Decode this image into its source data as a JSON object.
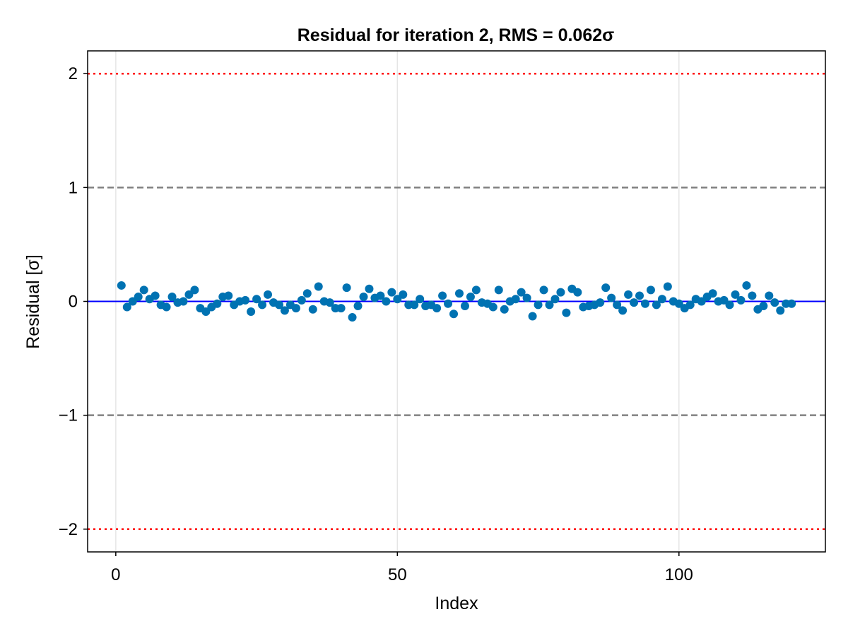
{
  "chart_data": {
    "type": "scatter",
    "title": "Residual for iteration 2, RMS = 0.062σ",
    "xlabel": "Index",
    "ylabel": "Residual [σ]",
    "xlim": [
      -5,
      126
    ],
    "ylim": [
      -2.2,
      2.2
    ],
    "xticks": [
      0,
      50,
      100
    ],
    "xtick_labels": [
      "0",
      "50",
      "100"
    ],
    "yticks": [
      -2,
      -1,
      0,
      1,
      2
    ],
    "ytick_labels": [
      "−2",
      "−1",
      "0",
      "1",
      "2"
    ],
    "grid": "vertical",
    "legend": "none",
    "colors": {
      "points": "#0072b2",
      "zero_line": "#0000ff",
      "sigma1_lines": "#808080",
      "sigma2_lines": "#ff0000",
      "grid": "#e5e5e5"
    },
    "reference_lines": [
      {
        "y": 2,
        "style": "dotted",
        "color": "#ff0000"
      },
      {
        "y": 1,
        "style": "dashed",
        "color": "#808080"
      },
      {
        "y": 0,
        "style": "solid",
        "color": "#0000ff"
      },
      {
        "y": -1,
        "style": "dashed",
        "color": "#808080"
      },
      {
        "y": -2,
        "style": "dotted",
        "color": "#ff0000"
      }
    ],
    "series": [
      {
        "x": [
          1,
          2,
          3,
          4,
          5,
          6,
          7,
          8,
          9,
          10,
          11,
          12,
          13,
          14,
          15,
          16,
          17,
          18,
          19,
          20,
          21,
          22,
          23,
          24,
          25,
          26,
          27,
          28,
          29,
          30,
          31,
          32,
          33,
          34,
          35,
          36,
          37,
          38,
          39,
          40,
          41,
          42,
          43,
          44,
          45,
          46,
          47,
          48,
          49,
          50,
          51,
          52,
          53,
          54,
          55,
          56,
          57,
          58,
          59,
          60,
          61,
          62,
          63,
          64,
          65,
          66,
          67,
          68,
          69,
          70,
          71,
          72,
          73,
          74,
          75,
          76,
          77,
          78,
          79,
          80,
          81,
          82,
          83,
          84,
          85,
          86,
          87,
          88,
          89,
          90,
          91,
          92,
          93,
          94,
          95,
          96,
          97,
          98,
          99,
          100,
          101,
          102,
          103,
          104,
          105,
          106,
          107,
          108,
          109,
          110,
          111,
          112,
          113,
          114,
          115,
          116,
          117,
          118,
          119,
          120
        ],
        "y": [
          0.14,
          -0.05,
          0.0,
          0.04,
          0.1,
          0.02,
          0.05,
          -0.03,
          -0.05,
          0.04,
          -0.01,
          0.0,
          0.06,
          0.1,
          -0.06,
          -0.09,
          -0.05,
          -0.02,
          0.04,
          0.05,
          -0.03,
          0.0,
          0.01,
          -0.09,
          0.02,
          -0.03,
          0.06,
          -0.01,
          -0.03,
          -0.08,
          -0.03,
          -0.06,
          0.01,
          0.07,
          -0.07,
          0.13,
          0.0,
          -0.01,
          -0.06,
          -0.06,
          0.12,
          -0.14,
          -0.04,
          0.04,
          0.11,
          0.03,
          0.05,
          0.0,
          0.08,
          0.02,
          0.06,
          -0.03,
          -0.03,
          0.02,
          -0.04,
          -0.03,
          -0.06,
          0.05,
          -0.02,
          -0.11,
          0.07,
          -0.04,
          0.04,
          0.1,
          -0.01,
          -0.02,
          -0.05,
          0.1,
          -0.07,
          0.0,
          0.02,
          0.08,
          0.03,
          -0.13,
          -0.03,
          0.1,
          -0.03,
          0.02,
          0.08,
          -0.1,
          0.11,
          0.08,
          -0.05,
          -0.04,
          -0.03,
          -0.01,
          0.12,
          0.03,
          -0.03,
          -0.08,
          0.06,
          -0.01,
          0.05,
          -0.02,
          0.1,
          -0.03,
          0.02,
          0.13,
          0.0,
          -0.02,
          -0.06,
          -0.03,
          0.02,
          0.0,
          0.04,
          0.07,
          0.0,
          0.01,
          -0.03,
          0.06,
          0.01,
          0.14,
          0.05,
          -0.07,
          -0.04,
          0.05,
          -0.01,
          -0.08,
          -0.02,
          -0.02
        ]
      }
    ]
  }
}
